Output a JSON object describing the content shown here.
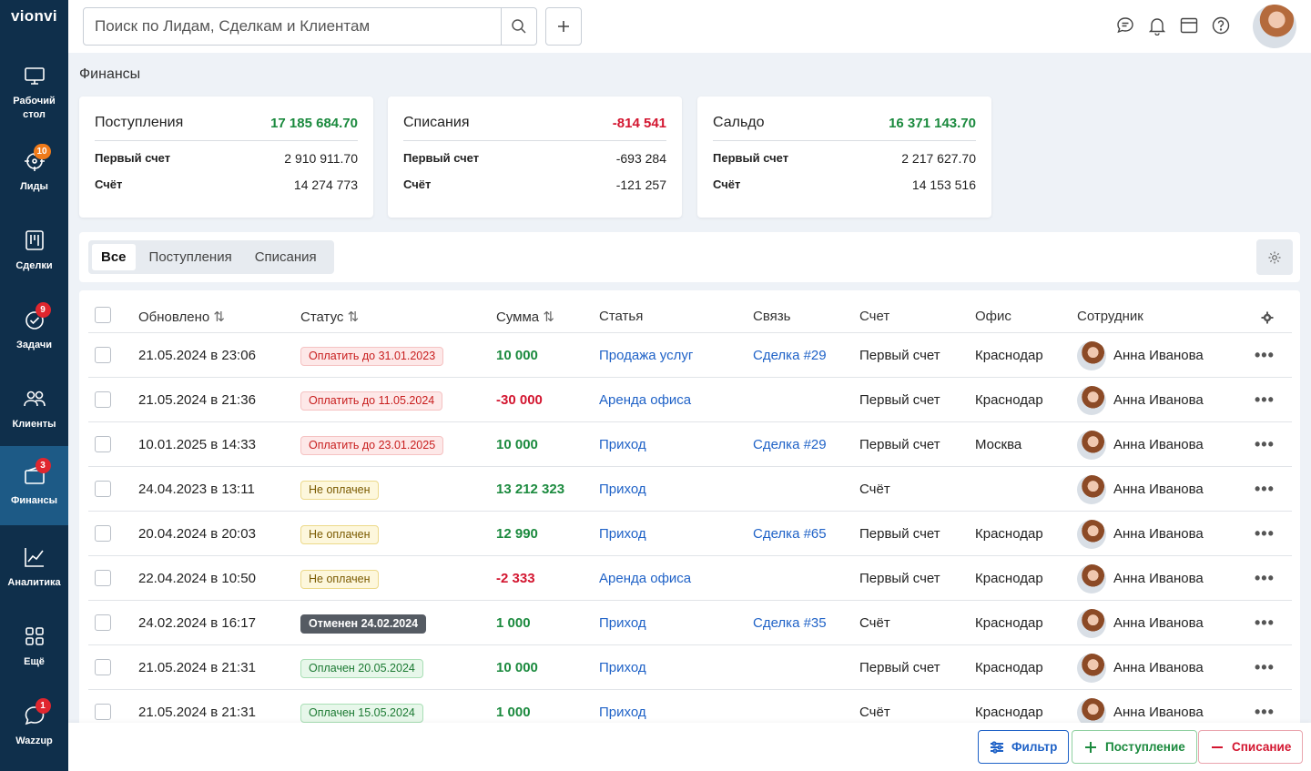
{
  "app": {
    "logo": "vionvi"
  },
  "sidebar": {
    "items": [
      {
        "label": "Рабочий стол",
        "icon": "monitor-icon",
        "badge": ""
      },
      {
        "label": "Лиды",
        "icon": "target-icon",
        "badge": "10"
      },
      {
        "label": "Сделки",
        "icon": "kanban-icon",
        "badge": ""
      },
      {
        "label": "Задачи",
        "icon": "check-circle-icon",
        "badge": "9"
      },
      {
        "label": "Клиенты",
        "icon": "users-icon",
        "badge": ""
      },
      {
        "label": "Финансы",
        "icon": "wallet-icon",
        "badge": "3"
      },
      {
        "label": "Аналитика",
        "icon": "chart-icon",
        "badge": ""
      },
      {
        "label": "Ещё",
        "icon": "grid-icon",
        "badge": ""
      },
      {
        "label": "Wazzup",
        "icon": "chat-bubble-icon",
        "badge": "1"
      }
    ]
  },
  "topbar": {
    "search_placeholder": "Поиск по Лидам, Сделкам и Клиентам",
    "icons": [
      "messages-icon",
      "bell-icon",
      "calendar-icon",
      "help-icon"
    ]
  },
  "page": {
    "title": "Финансы"
  },
  "cards": [
    {
      "title": "Поступления",
      "total": "17 185 684.70",
      "color": "#1b8a3e",
      "rows": [
        {
          "k": "Первый счет",
          "v": "2 910 911.70"
        },
        {
          "k": "Счёт",
          "v": "14 274 773"
        }
      ]
    },
    {
      "title": "Списания",
      "total": "-814 541",
      "color": "#d31630",
      "rows": [
        {
          "k": "Первый счет",
          "v": "-693 284"
        },
        {
          "k": "Счёт",
          "v": "-121 257"
        }
      ]
    },
    {
      "title": "Сальдо",
      "total": "16 371 143.70",
      "color": "#1b8a3e",
      "rows": [
        {
          "k": "Первый счет",
          "v": "2 217 627.70"
        },
        {
          "k": "Счёт",
          "v": "14 153 516"
        }
      ]
    }
  ],
  "tabs": [
    "Все",
    "Поступления",
    "Списания"
  ],
  "table": {
    "headers": {
      "updated": "Обновлено",
      "status": "Статус",
      "amount": "Сумма",
      "article": "Статья",
      "link": "Связь",
      "account": "Счет",
      "office": "Офис",
      "employee": "Сотрудник"
    },
    "rows": [
      {
        "updated": "21.05.2024 в 23:06",
        "status": "Оплатить до 31.01.2023",
        "status_type": "pay",
        "amount": "10 000",
        "amount_type": "green",
        "article": "Продажа услуг",
        "link": "Сделка #29",
        "account": "Первый счет",
        "office": "Краснодар",
        "employee": "Анна Иванова"
      },
      {
        "updated": "21.05.2024 в 21:36",
        "status": "Оплатить до 11.05.2024",
        "status_type": "pay",
        "amount": "-30 000",
        "amount_type": "red",
        "article": "Аренда офиса",
        "link": "",
        "account": "Первый счет",
        "office": "Краснодар",
        "employee": "Анна Иванова"
      },
      {
        "updated": "10.01.2025 в 14:33",
        "status": "Оплатить до 23.01.2025",
        "status_type": "pay",
        "amount": "10 000",
        "amount_type": "green",
        "article": "Приход",
        "link": "Сделка #29",
        "account": "Первый счет",
        "office": "Москва",
        "employee": "Анна Иванова"
      },
      {
        "updated": "24.04.2023 в 13:11",
        "status": "Не оплачен",
        "status_type": "unpaid",
        "amount": "13 212 323",
        "amount_type": "green",
        "article": "Приход",
        "link": "",
        "account": "Счёт",
        "office": "",
        "employee": "Анна Иванова"
      },
      {
        "updated": "20.04.2024 в 20:03",
        "status": "Не оплачен",
        "status_type": "unpaid",
        "amount": "12 990",
        "amount_type": "green",
        "article": "Приход",
        "link": "Сделка #65",
        "account": "Первый счет",
        "office": "Краснодар",
        "employee": "Анна Иванова"
      },
      {
        "updated": "22.04.2024 в 10:50",
        "status": "Не оплачен",
        "status_type": "unpaid",
        "amount": "-2 333",
        "amount_type": "red",
        "article": "Аренда офиса",
        "link": "",
        "account": "Первый счет",
        "office": "Краснодар",
        "employee": "Анна Иванова"
      },
      {
        "updated": "24.02.2024 в 16:17",
        "status": "Отменен 24.02.2024",
        "status_type": "cancel",
        "amount": "1 000",
        "amount_type": "green",
        "article": "Приход",
        "link": "Сделка #35",
        "account": "Счёт",
        "office": "Краснодар",
        "employee": "Анна Иванова"
      },
      {
        "updated": "21.05.2024 в 21:31",
        "status": "Оплачен 20.05.2024",
        "status_type": "paid",
        "amount": "10 000",
        "amount_type": "green",
        "article": "Приход",
        "link": "",
        "account": "Первый счет",
        "office": "Краснодар",
        "employee": "Анна Иванова"
      },
      {
        "updated": "21.05.2024 в 21:31",
        "status": "Оплачен 15.05.2024",
        "status_type": "paid",
        "amount": "1 000",
        "amount_type": "green",
        "article": "Приход",
        "link": "",
        "account": "Счёт",
        "office": "Краснодар",
        "employee": "Анна Иванова"
      }
    ]
  },
  "bottom": {
    "filter": "Фильтр",
    "income": "Поступление",
    "expense": "Списание"
  }
}
